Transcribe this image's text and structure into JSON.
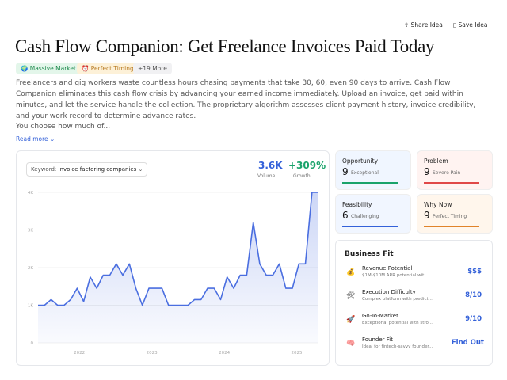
{
  "header": {
    "share": "Share Idea",
    "save": "Save Idea"
  },
  "title": "Cash Flow Companion: Get Freelance Invoices Paid Today",
  "tags": [
    "Massive Market",
    "Perfect Timing",
    "+19 More"
  ],
  "description": [
    "Freelancers and gig workers waste countless hours chasing payments that take 30, 60, even 90 days to arrive. Cash Flow Companion eliminates this cash flow crisis by advancing your earned income immediately. Upload an invoice, get paid within minutes, and let the service handle the collection. The proprietary algorithm assesses client payment history, invoice credibility, and your work record to determine advance rates.",
    "You choose how much of..."
  ],
  "read_more": "Read more",
  "trend": {
    "keyword_label": "Keyword:",
    "keyword": "Invoice factoring companies",
    "volume": "3.6K",
    "volume_label": "Volume",
    "growth": "+309%",
    "growth_label": "Growth"
  },
  "chart_data": {
    "type": "line",
    "x": [
      2021.43,
      2021.52,
      2021.61,
      2021.7,
      2021.79,
      2021.88,
      2021.97,
      2022.06,
      2022.15,
      2022.24,
      2022.33,
      2022.42,
      2022.51,
      2022.6,
      2022.69,
      2022.78,
      2022.87,
      2022.96,
      2023.05,
      2023.14,
      2023.23,
      2023.32,
      2023.41,
      2023.5,
      2023.59,
      2023.68,
      2023.77,
      2023.86,
      2023.95,
      2024.04,
      2024.13,
      2024.22,
      2024.31,
      2024.4,
      2024.49,
      2024.58,
      2024.67,
      2024.76,
      2024.85,
      2024.94,
      2025.03,
      2025.12,
      2025.21,
      2025.3
    ],
    "series": [
      {
        "name": "Invoice factoring companies",
        "color": "#4a6ee0",
        "values": [
          1000,
          1000,
          1150,
          1000,
          1000,
          1150,
          1450,
          1100,
          1750,
          1450,
          1800,
          1800,
          2100,
          1800,
          2100,
          1450,
          1000,
          1450,
          1450,
          1450,
          1000,
          1000,
          1000,
          1000,
          1150,
          1150,
          1450,
          1450,
          1150,
          1750,
          1450,
          1800,
          1800,
          3200,
          2100,
          1800,
          1800,
          2100,
          1450,
          1450,
          2100,
          2100,
          4000,
          4000
        ]
      }
    ],
    "xlim": [
      2021.43,
      2025.3
    ],
    "xticks": [
      2022,
      2023,
      2024,
      2025
    ],
    "ylim": [
      0,
      4000
    ],
    "yticks": [
      0,
      {
        "value": 1000,
        "label": "1K"
      },
      {
        "value": 2000,
        "label": "2K"
      },
      {
        "value": 3000,
        "label": "3K"
      },
      {
        "value": 4000,
        "label": "4K"
      }
    ],
    "grid": true
  },
  "cards": [
    {
      "title": "Opportunity",
      "score": "9",
      "label": "Exceptional"
    },
    {
      "title": "Problem",
      "score": "9",
      "label": "Severe Pain"
    },
    {
      "title": "Feasibility",
      "score": "6",
      "label": "Challenging"
    },
    {
      "title": "Why Now",
      "score": "9",
      "label": "Perfect Timing"
    }
  ],
  "business_fit": {
    "title": "Business Fit",
    "rows": [
      {
        "title": "Revenue Potential",
        "desc": "$1M-$10M ARR potential wit...",
        "value": "$$$"
      },
      {
        "title": "Execution Difficulty",
        "desc": "Complex platform with predict...",
        "value": "8/10"
      },
      {
        "title": "Go-To-Market",
        "desc": "Exceptional potential with stro...",
        "value": "9/10"
      },
      {
        "title": "Founder Fit",
        "desc": "Ideal for fintech-savvy founder...",
        "value": "Find Out"
      }
    ]
  }
}
